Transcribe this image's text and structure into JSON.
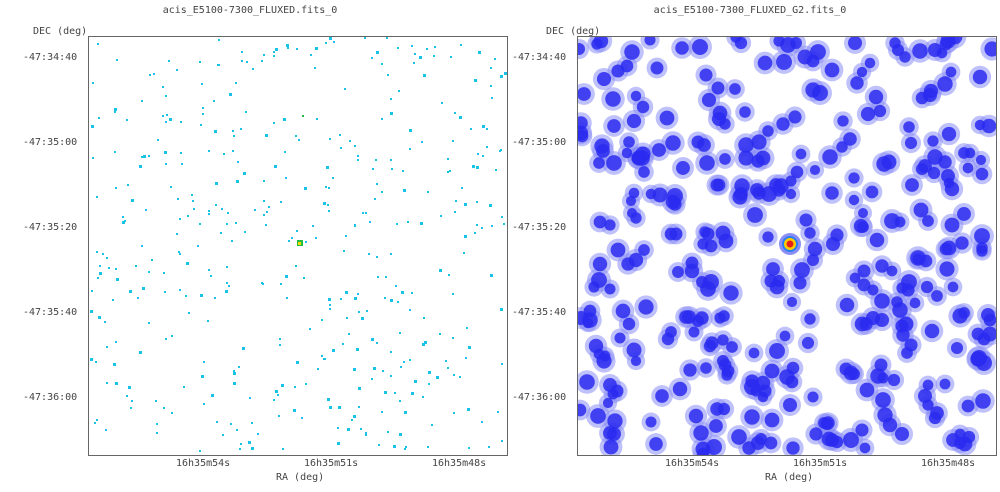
{
  "panels": [
    {
      "title": "acis_E5100-7300_FLUXED.fits_0",
      "y_axis_label": "DEC (deg)",
      "x_axis_label": "RA (deg)",
      "y_ticks": [
        "-47:34:40",
        "-47:35:00",
        "-47:35:20",
        "-47:35:40",
        "-47:36:00"
      ],
      "x_ticks": [
        "16h35m54s",
        "16h35m51s",
        "16h35m48s"
      ],
      "style": "sparse-cyan",
      "colors": {
        "pixel": "#19c3e6",
        "source_hot": "#ffd700",
        "source_green": "#22bb44"
      }
    },
    {
      "title": "acis_E5100-7300_FLUXED_G2.fits_0",
      "y_axis_label": "DEC (deg)",
      "x_axis_label": "RA (deg)",
      "y_ticks": [
        "-47:34:40",
        "-47:35:00",
        "-47:35:20",
        "-47:35:40",
        "-47:36:00"
      ],
      "x_ticks": [
        "16h35m54s",
        "16h35m51s",
        "16h35m48s"
      ],
      "style": "smoothed-blue",
      "colors": {
        "blob": "#2a2af0",
        "halo": "#8a8ef5",
        "source_core": "#e8201a",
        "source_ring": "#ffcc00"
      }
    }
  ]
}
